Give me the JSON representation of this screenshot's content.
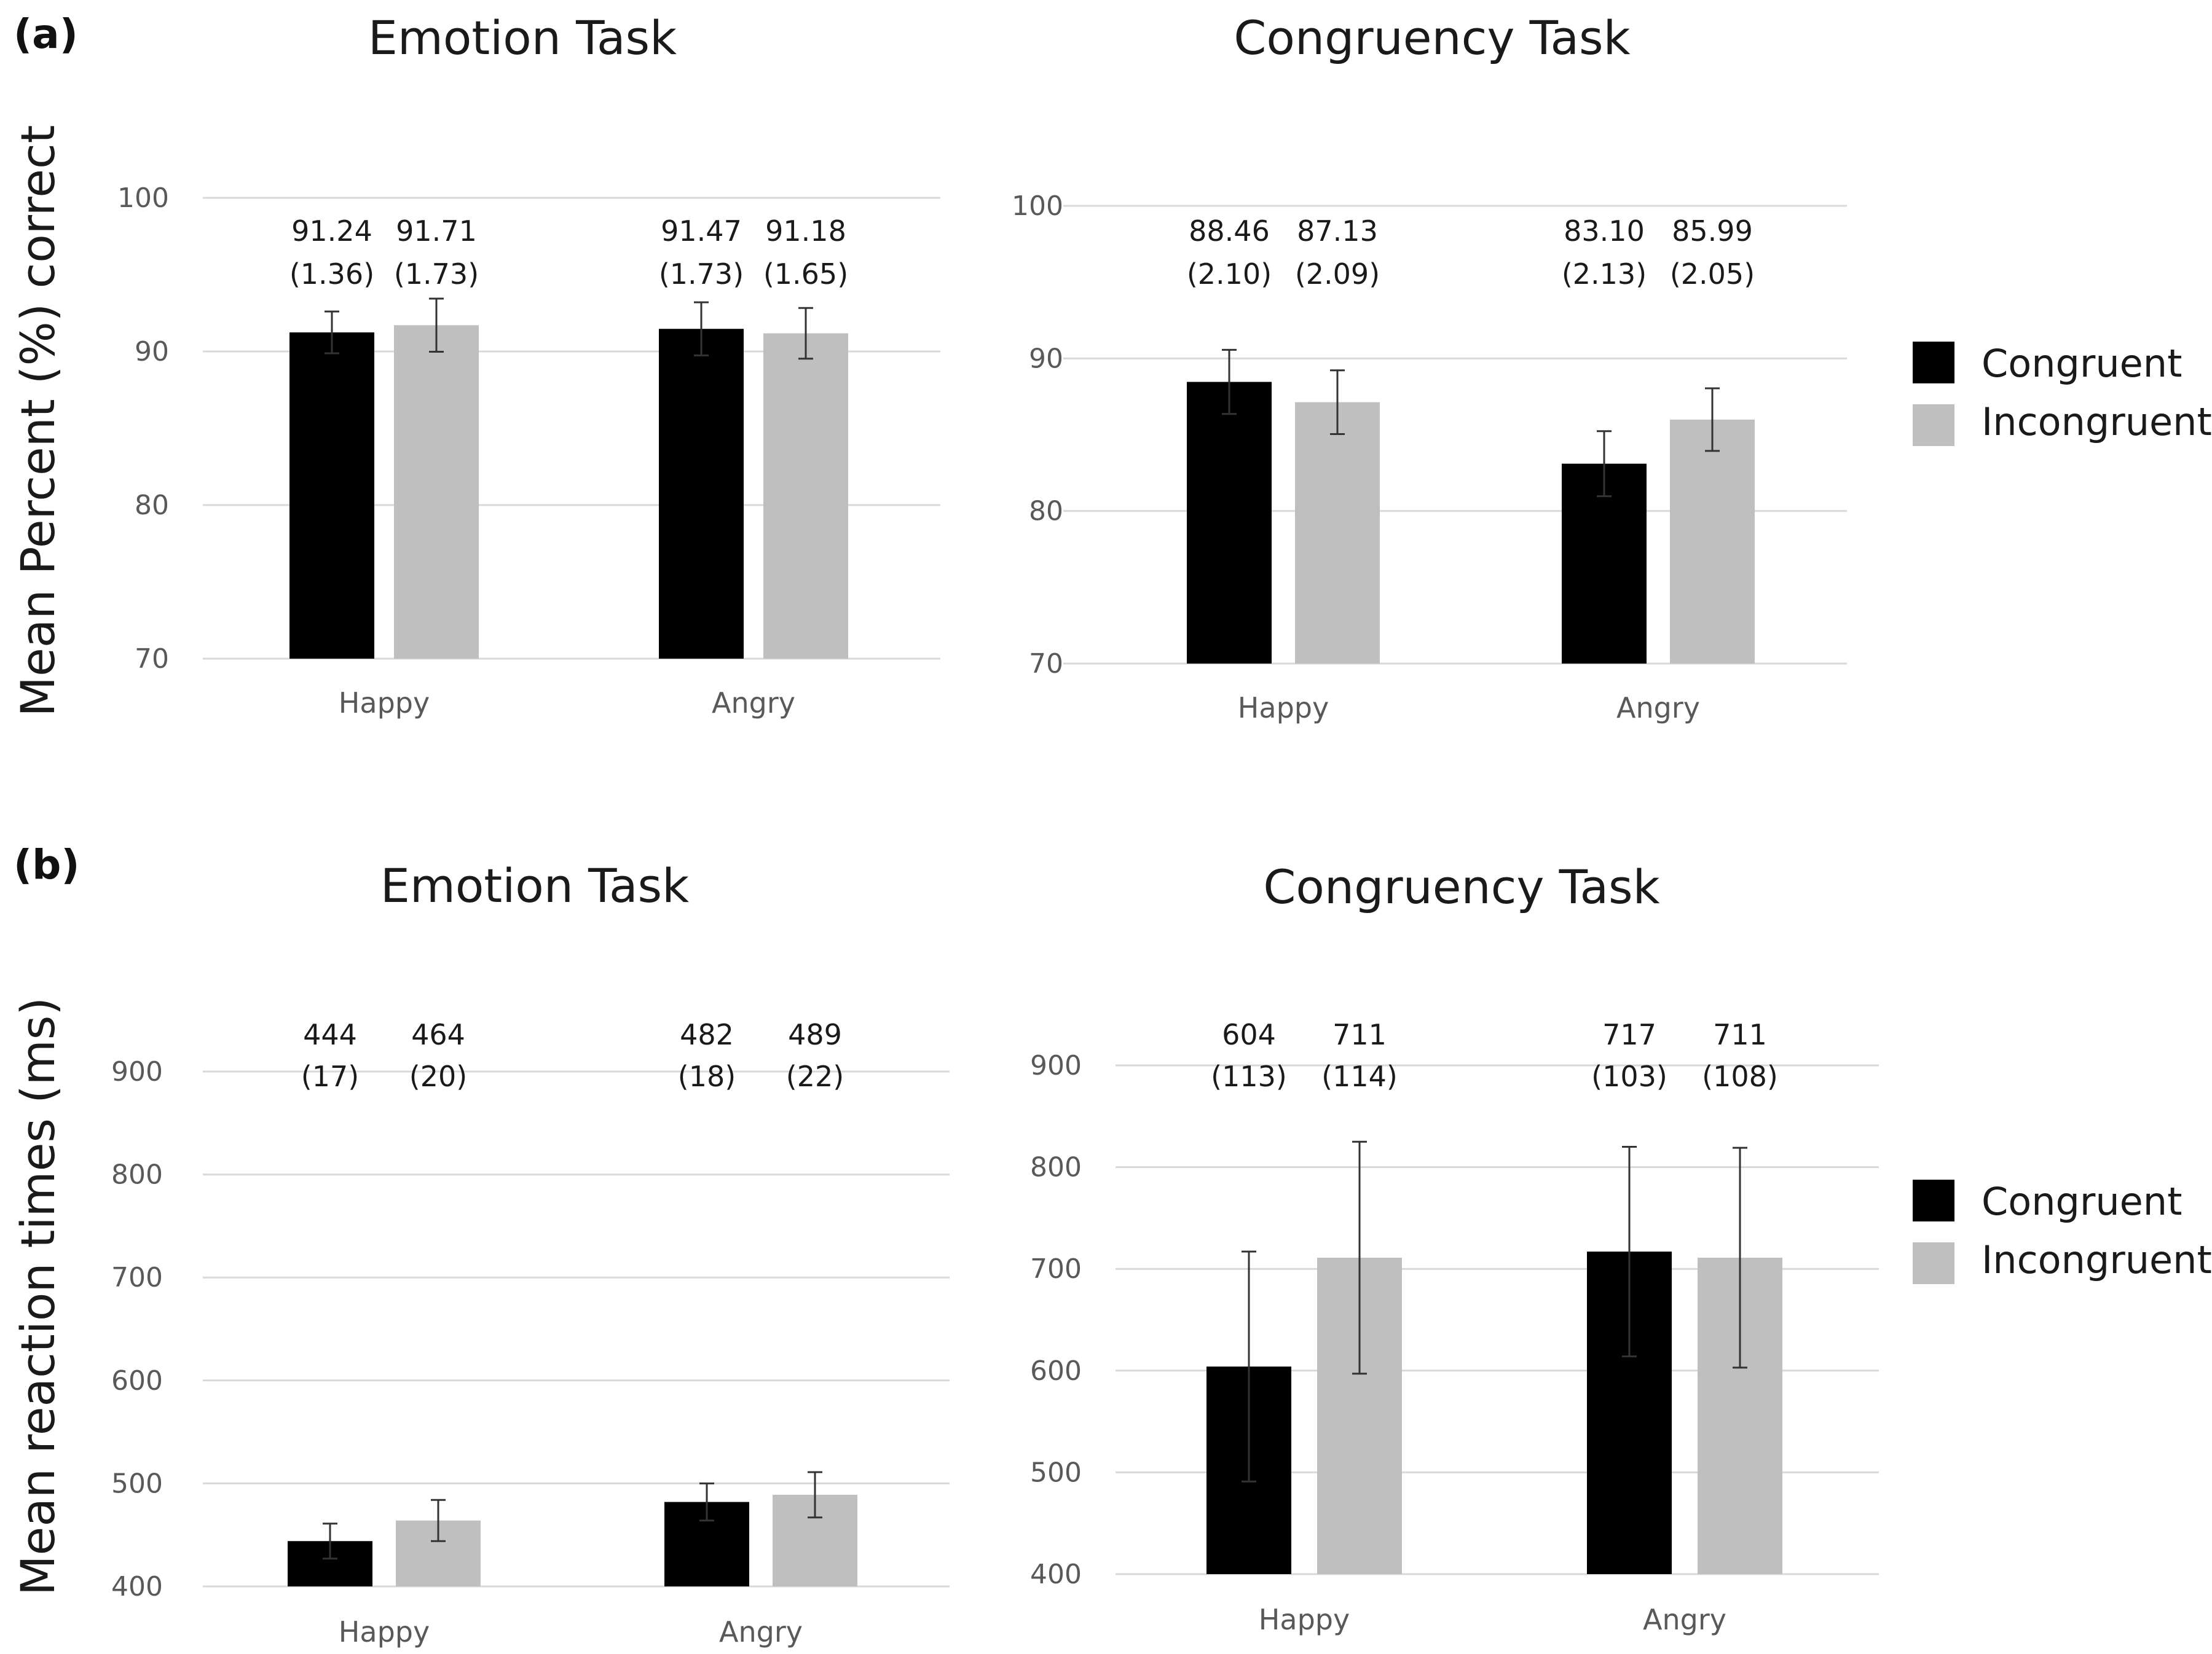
{
  "panels": {
    "a": {
      "label": "(a)",
      "ylabel": "Mean Percent (%) correct"
    },
    "b": {
      "label": "(b)",
      "ylabel": "Mean reaction times (ms)"
    }
  },
  "legend": {
    "items": [
      "Congruent",
      "Incongruent"
    ]
  },
  "colors": {
    "congruent": "#000000",
    "incongruent": "#bfbfbf"
  },
  "chart_data": [
    {
      "id": "a-emotion",
      "type": "bar",
      "title": "Emotion Task",
      "xlabel": "",
      "ylabel": "Mean Percent (%) correct",
      "categories": [
        "Happy",
        "Angry"
      ],
      "ylim": [
        70,
        100
      ],
      "yticks": [
        70,
        80,
        90,
        100
      ],
      "series": [
        {
          "name": "Congruent",
          "values": [
            91.24,
            91.47
          ],
          "errors": [
            1.36,
            1.73
          ],
          "labels": [
            "91.24",
            "91.47"
          ],
          "error_labels": [
            "(1.36)",
            "(1.73)"
          ]
        },
        {
          "name": "Incongruent",
          "values": [
            91.71,
            91.18
          ],
          "errors": [
            1.73,
            1.65
          ],
          "labels": [
            "91.71",
            "91.18"
          ],
          "error_labels": [
            "(1.73)",
            "(1.65)"
          ]
        }
      ]
    },
    {
      "id": "a-congruency",
      "type": "bar",
      "title": "Congruency Task",
      "xlabel": "",
      "ylabel": "",
      "categories": [
        "Happy",
        "Angry"
      ],
      "ylim": [
        70,
        100
      ],
      "yticks": [
        70,
        80,
        90,
        100
      ],
      "series": [
        {
          "name": "Congruent",
          "values": [
            88.46,
            83.1
          ],
          "errors": [
            2.1,
            2.13
          ],
          "labels": [
            "88.46",
            "83.10"
          ],
          "error_labels": [
            "(2.10)",
            "(2.13)"
          ]
        },
        {
          "name": "Incongruent",
          "values": [
            87.13,
            85.99
          ],
          "errors": [
            2.09,
            2.05
          ],
          "labels": [
            "87.13",
            "85.99"
          ],
          "error_labels": [
            "(2.09)",
            "(2.05)"
          ]
        }
      ]
    },
    {
      "id": "b-emotion",
      "type": "bar",
      "title": "Emotion Task",
      "xlabel": "",
      "ylabel": "Mean reaction times (ms)",
      "categories": [
        "Happy",
        "Angry"
      ],
      "ylim": [
        400,
        900
      ],
      "yticks": [
        400,
        500,
        600,
        700,
        800,
        900
      ],
      "series": [
        {
          "name": "Congruent",
          "values": [
            444,
            482
          ],
          "errors": [
            17,
            18
          ],
          "labels": [
            "444",
            "482"
          ],
          "error_labels": [
            "(17)",
            "(18)"
          ]
        },
        {
          "name": "Incongruent",
          "values": [
            464,
            489
          ],
          "errors": [
            20,
            22
          ],
          "labels": [
            "464",
            "489"
          ],
          "error_labels": [
            "(20)",
            "(22)"
          ]
        }
      ]
    },
    {
      "id": "b-congruency",
      "type": "bar",
      "title": "Congruency Task",
      "xlabel": "",
      "ylabel": "",
      "categories": [
        "Happy",
        "Angry"
      ],
      "ylim": [
        400,
        900
      ],
      "yticks": [
        400,
        500,
        600,
        700,
        800,
        900
      ],
      "series": [
        {
          "name": "Congruent",
          "values": [
            604,
            717
          ],
          "errors": [
            113,
            103
          ],
          "labels": [
            "604",
            "717"
          ],
          "error_labels": [
            "(113)",
            "(103)"
          ]
        },
        {
          "name": "Incongruent",
          "values": [
            711,
            711
          ],
          "errors": [
            114,
            108
          ],
          "labels": [
            "711",
            "711"
          ],
          "error_labels": [
            "(114)",
            "(108)"
          ]
        }
      ]
    }
  ]
}
